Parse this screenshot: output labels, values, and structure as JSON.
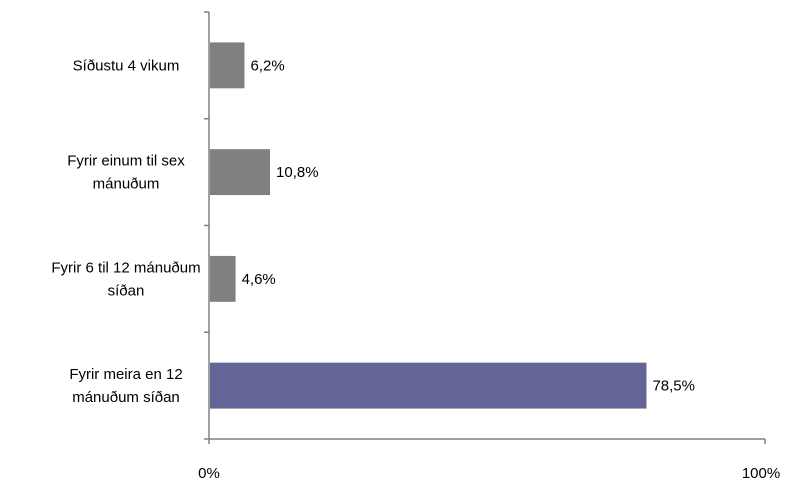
{
  "chart_data": {
    "type": "bar",
    "orientation": "horizontal",
    "categories": [
      [
        "Síðustu 4 vikum"
      ],
      [
        "Fyrir einum til sex",
        "mánuðum"
      ],
      [
        "Fyrir 6 til 12 mánuðum",
        "síðan"
      ],
      [
        "Fyrir meira en 12",
        "mánuðum síðan"
      ]
    ],
    "values": [
      6.2,
      10.8,
      4.6,
      78.5
    ],
    "data_labels": [
      "6,2%",
      "10,8%",
      "4,6%",
      "78,5%"
    ],
    "bar_colors": [
      "#808080",
      "#808080",
      "#808080",
      "#646496"
    ],
    "xlim": [
      0,
      100
    ],
    "x_tick_labels": [
      "0%",
      "100%"
    ],
    "grid": false,
    "title": "",
    "xlabel": "",
    "ylabel": ""
  }
}
